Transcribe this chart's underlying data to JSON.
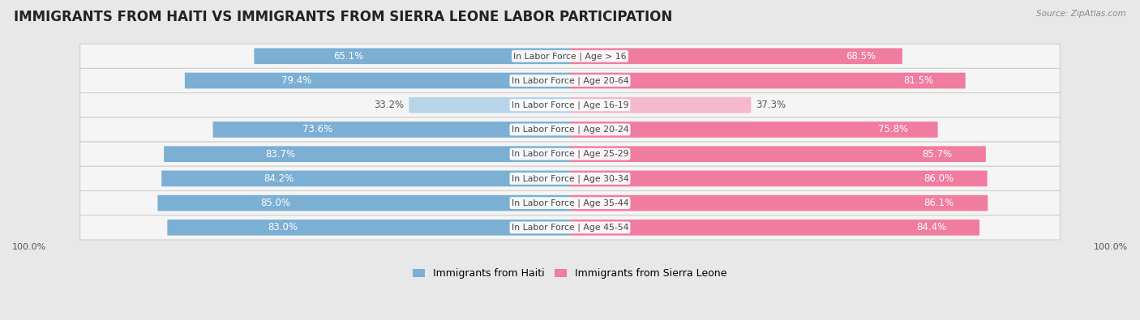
{
  "title": "IMMIGRANTS FROM HAITI VS IMMIGRANTS FROM SIERRA LEONE LABOR PARTICIPATION",
  "source": "Source: ZipAtlas.com",
  "categories": [
    "In Labor Force | Age > 16",
    "In Labor Force | Age 20-64",
    "In Labor Force | Age 16-19",
    "In Labor Force | Age 20-24",
    "In Labor Force | Age 25-29",
    "In Labor Force | Age 30-34",
    "In Labor Force | Age 35-44",
    "In Labor Force | Age 45-54"
  ],
  "haiti_values": [
    65.1,
    79.4,
    33.2,
    73.6,
    83.7,
    84.2,
    85.0,
    83.0
  ],
  "sierra_leone_values": [
    68.5,
    81.5,
    37.3,
    75.8,
    85.7,
    86.0,
    86.1,
    84.4
  ],
  "haiti_color": "#7bafd4",
  "haiti_color_light": "#b8d4e8",
  "sierra_leone_color": "#f07ca0",
  "sierra_leone_color_light": "#f5b8cc",
  "haiti_label": "Immigrants from Haiti",
  "sierra_leone_label": "Immigrants from Sierra Leone",
  "background_color": "#e8e8e8",
  "row_bg_color": "#f5f5f5",
  "row_border_color": "#d0d0d0",
  "max_value": 100.0,
  "title_fontsize": 12,
  "value_fontsize": 8.5,
  "cat_fontsize": 7.8,
  "legend_fontsize": 9,
  "axis_label_fontsize": 8
}
